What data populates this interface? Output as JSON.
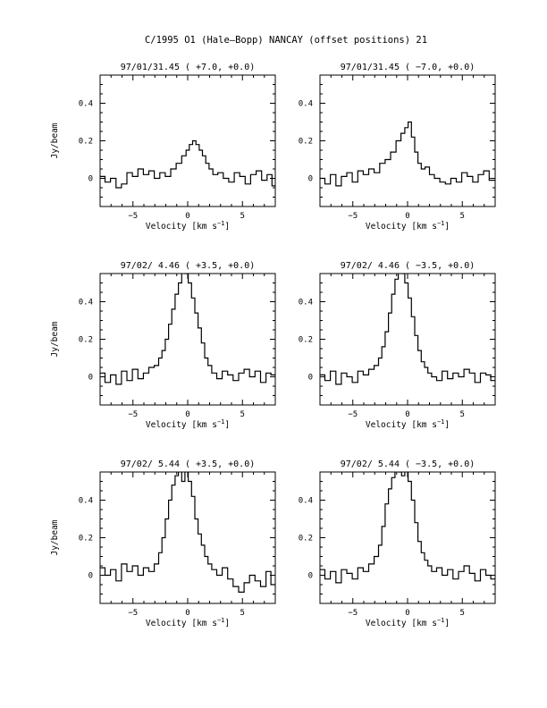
{
  "figure": {
    "title": "C/1995 O1 (Hale–Bopp)   NANCAY     (offset positions)   21"
  },
  "chart_data": [
    {
      "type": "line",
      "step": true,
      "title": "97/01/31.45  ( +7.0, +0.0)",
      "xlabel": "Velocity [km s",
      "xlabel_sup": "−1",
      "xlabel_close": "]",
      "ylabel": "Jy/beam",
      "xlim": [
        -8,
        8
      ],
      "ylim": [
        -0.15,
        0.55
      ],
      "xticks": [
        -5,
        0,
        5
      ],
      "xtick_labels": [
        "−5",
        "0",
        "5"
      ],
      "yticks": [
        0,
        0.2,
        0.4
      ],
      "ytick_labels": [
        "0",
        "0.2",
        "0.4"
      ],
      "x": [
        -7.8,
        -7.3,
        -6.8,
        -6.3,
        -5.8,
        -5.3,
        -4.8,
        -4.3,
        -3.8,
        -3.3,
        -2.8,
        -2.3,
        -1.8,
        -1.3,
        -0.8,
        -0.3,
        0.0,
        0.3,
        0.6,
        0.9,
        1.2,
        1.5,
        1.8,
        2.1,
        2.5,
        3.0,
        3.5,
        4.0,
        4.5,
        5.0,
        5.5,
        6.0,
        6.5,
        7.0,
        7.5,
        7.9
      ],
      "y": [
        0.01,
        -0.02,
        0.0,
        -0.05,
        -0.03,
        0.03,
        0.01,
        0.05,
        0.02,
        0.04,
        0.0,
        0.03,
        0.01,
        0.05,
        0.08,
        0.12,
        0.15,
        0.18,
        0.2,
        0.18,
        0.15,
        0.12,
        0.08,
        0.05,
        0.02,
        0.03,
        0.0,
        -0.02,
        0.03,
        0.01,
        -0.03,
        0.02,
        0.04,
        -0.01,
        0.02,
        -0.04
      ]
    },
    {
      "type": "line",
      "step": true,
      "title": "97/01/31.45  ( −7.0, +0.0)",
      "xlabel": "Velocity [km s",
      "xlabel_sup": "−1",
      "xlabel_close": "]",
      "ylabel": "",
      "xlim": [
        -8,
        8
      ],
      "ylim": [
        -0.15,
        0.55
      ],
      "xticks": [
        -5,
        0,
        5
      ],
      "xtick_labels": [
        "−5",
        "0",
        "5"
      ],
      "yticks": [
        0,
        0.2,
        0.4
      ],
      "ytick_labels": [
        "0",
        "0.2",
        "0.4"
      ],
      "x": [
        -7.8,
        -7.3,
        -6.8,
        -6.3,
        -5.8,
        -5.3,
        -4.8,
        -4.3,
        -3.8,
        -3.3,
        -2.8,
        -2.3,
        -1.8,
        -1.3,
        -0.8,
        -0.4,
        -0.1,
        0.2,
        0.5,
        0.8,
        1.1,
        1.4,
        1.8,
        2.2,
        2.7,
        3.2,
        3.7,
        4.2,
        4.7,
        5.2,
        5.7,
        6.2,
        6.7,
        7.2,
        7.7
      ],
      "y": [
        0.0,
        -0.03,
        0.02,
        -0.04,
        0.01,
        0.03,
        -0.02,
        0.04,
        0.02,
        0.05,
        0.03,
        0.08,
        0.1,
        0.14,
        0.2,
        0.24,
        0.27,
        0.3,
        0.22,
        0.14,
        0.08,
        0.05,
        0.06,
        0.02,
        0.0,
        -0.02,
        -0.03,
        0.0,
        -0.02,
        0.03,
        0.01,
        -0.02,
        0.02,
        0.04,
        -0.01
      ]
    },
    {
      "type": "line",
      "step": true,
      "title": "97/02/ 4.46  ( +3.5, +0.0)",
      "xlabel": "Velocity [km s",
      "xlabel_sup": "−1",
      "xlabel_close": "]",
      "ylabel": "Jy/beam",
      "xlim": [
        -8,
        8
      ],
      "ylim": [
        -0.15,
        0.55
      ],
      "xticks": [
        -5,
        0,
        5
      ],
      "xtick_labels": [
        "−5",
        "0",
        "5"
      ],
      "yticks": [
        0,
        0.2,
        0.4
      ],
      "ytick_labels": [
        "0",
        "0.2",
        "0.4"
      ],
      "x": [
        -7.8,
        -7.3,
        -6.8,
        -6.3,
        -5.8,
        -5.3,
        -4.8,
        -4.3,
        -3.8,
        -3.3,
        -2.8,
        -2.5,
        -2.2,
        -1.9,
        -1.6,
        -1.3,
        -1.0,
        -0.7,
        -0.4,
        -0.1,
        0.2,
        0.5,
        0.8,
        1.1,
        1.4,
        1.7,
        2.0,
        2.4,
        2.9,
        3.4,
        3.9,
        4.4,
        4.9,
        5.4,
        5.9,
        6.4,
        6.9,
        7.4,
        7.8
      ],
      "y": [
        0.02,
        -0.03,
        0.01,
        -0.04,
        0.03,
        -0.02,
        0.04,
        -0.01,
        0.02,
        0.05,
        0.06,
        0.1,
        0.14,
        0.2,
        0.28,
        0.36,
        0.44,
        0.5,
        0.56,
        0.55,
        0.5,
        0.42,
        0.34,
        0.26,
        0.18,
        0.1,
        0.06,
        0.02,
        -0.01,
        0.03,
        0.01,
        -0.02,
        0.02,
        0.04,
        0.0,
        0.03,
        -0.03,
        0.02,
        0.01
      ]
    },
    {
      "type": "line",
      "step": true,
      "title": "97/02/ 4.46  ( −3.5, +0.0)",
      "xlabel": "Velocity [km s",
      "xlabel_sup": "−1",
      "xlabel_close": "]",
      "ylabel": "",
      "xlim": [
        -8,
        8
      ],
      "ylim": [
        -0.15,
        0.55
      ],
      "xticks": [
        -5,
        0,
        5
      ],
      "xtick_labels": [
        "−5",
        "0",
        "5"
      ],
      "yticks": [
        0,
        0.2,
        0.4
      ],
      "ytick_labels": [
        "0",
        "0.2",
        "0.4"
      ],
      "x": [
        -7.8,
        -7.3,
        -6.8,
        -6.3,
        -5.8,
        -5.3,
        -4.8,
        -4.3,
        -3.8,
        -3.3,
        -2.8,
        -2.5,
        -2.2,
        -1.9,
        -1.6,
        -1.3,
        -1.0,
        -0.7,
        -0.4,
        -0.1,
        0.2,
        0.5,
        0.8,
        1.1,
        1.4,
        1.7,
        2.0,
        2.4,
        2.9,
        3.4,
        3.9,
        4.4,
        4.9,
        5.4,
        5.9,
        6.4,
        6.9,
        7.4,
        7.8
      ],
      "y": [
        0.01,
        -0.02,
        0.03,
        -0.04,
        0.02,
        0.0,
        -0.03,
        0.03,
        0.01,
        0.04,
        0.06,
        0.1,
        0.16,
        0.24,
        0.34,
        0.44,
        0.52,
        0.56,
        0.55,
        0.5,
        0.42,
        0.32,
        0.22,
        0.14,
        0.08,
        0.05,
        0.02,
        0.0,
        -0.02,
        0.03,
        -0.01,
        0.02,
        0.0,
        0.04,
        0.02,
        -0.03,
        0.02,
        0.01,
        -0.02
      ]
    },
    {
      "type": "line",
      "step": true,
      "title": "97/02/ 5.44  ( +3.5, +0.0)",
      "xlabel": "Velocity [km s",
      "xlabel_sup": "−1",
      "xlabel_close": "]",
      "ylabel": "Jy/beam",
      "xlim": [
        -8,
        8
      ],
      "ylim": [
        -0.15,
        0.55
      ],
      "xticks": [
        -5,
        0,
        5
      ],
      "xtick_labels": [
        "−5",
        "0",
        "5"
      ],
      "yticks": [
        0,
        0.2,
        0.4
      ],
      "ytick_labels": [
        "0",
        "0.2",
        "0.4"
      ],
      "x": [
        -7.8,
        -7.3,
        -6.8,
        -6.3,
        -5.8,
        -5.3,
        -4.8,
        -4.3,
        -3.8,
        -3.3,
        -2.8,
        -2.5,
        -2.2,
        -1.9,
        -1.6,
        -1.3,
        -1.0,
        -0.7,
        -0.4,
        -0.1,
        0.2,
        0.5,
        0.8,
        1.1,
        1.4,
        1.7,
        2.0,
        2.4,
        2.9,
        3.4,
        3.9,
        4.4,
        4.9,
        5.4,
        5.9,
        6.4,
        6.9,
        7.4,
        7.8
      ],
      "y": [
        0.04,
        0.0,
        0.03,
        -0.03,
        0.06,
        0.02,
        0.05,
        0.0,
        0.04,
        0.02,
        0.06,
        0.12,
        0.2,
        0.3,
        0.4,
        0.48,
        0.53,
        0.56,
        0.5,
        0.56,
        0.5,
        0.42,
        0.3,
        0.22,
        0.16,
        0.1,
        0.06,
        0.03,
        0.0,
        0.04,
        -0.02,
        -0.06,
        -0.09,
        -0.04,
        0.0,
        -0.03,
        -0.06,
        0.02,
        -0.05
      ]
    },
    {
      "type": "line",
      "step": true,
      "title": "97/02/ 5.44  ( −3.5, +0.0)",
      "xlabel": "Velocity [km s",
      "xlabel_sup": "−1",
      "xlabel_close": "]",
      "ylabel": "",
      "xlim": [
        -8,
        8
      ],
      "ylim": [
        -0.15,
        0.55
      ],
      "xticks": [
        -5,
        0,
        5
      ],
      "xtick_labels": [
        "−5",
        "0",
        "5"
      ],
      "yticks": [
        0,
        0.2,
        0.4
      ],
      "ytick_labels": [
        "0",
        "0.2",
        "0.4"
      ],
      "x": [
        -7.8,
        -7.3,
        -6.8,
        -6.3,
        -5.8,
        -5.3,
        -4.8,
        -4.3,
        -3.8,
        -3.3,
        -2.8,
        -2.5,
        -2.2,
        -1.9,
        -1.6,
        -1.3,
        -1.0,
        -0.7,
        -0.4,
        -0.1,
        0.2,
        0.5,
        0.8,
        1.1,
        1.4,
        1.7,
        2.0,
        2.4,
        2.9,
        3.4,
        3.9,
        4.4,
        4.9,
        5.4,
        5.9,
        6.4,
        6.9,
        7.4,
        7.8
      ],
      "y": [
        0.03,
        -0.02,
        0.02,
        -0.04,
        0.03,
        0.01,
        -0.02,
        0.04,
        0.02,
        0.06,
        0.1,
        0.16,
        0.26,
        0.38,
        0.46,
        0.52,
        0.56,
        0.55,
        0.53,
        0.56,
        0.5,
        0.4,
        0.28,
        0.18,
        0.12,
        0.08,
        0.05,
        0.02,
        0.04,
        0.0,
        0.03,
        -0.02,
        0.02,
        0.05,
        0.01,
        -0.03,
        0.03,
        0.0,
        -0.02
      ]
    }
  ]
}
